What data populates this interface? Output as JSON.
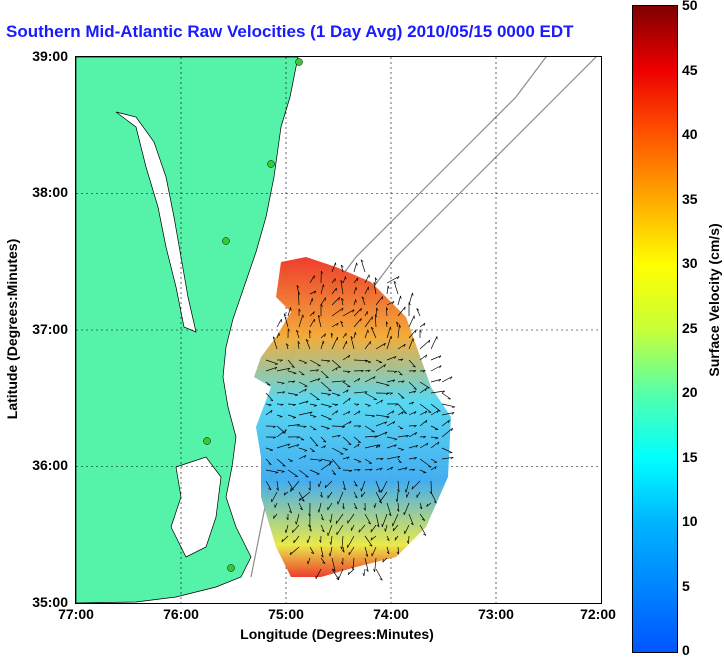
{
  "title": "Southern Mid-Atlantic Raw Velocities (1 Day Avg) 2010/05/15 0000 EDT",
  "axes": {
    "x_title": "Longitude (Degrees:Minutes)",
    "y_title": "Latitude (Degrees:Minutes)",
    "x_ticks": [
      "77:00",
      "76:00",
      "75:00",
      "74:00",
      "73:00",
      "72:00"
    ],
    "y_ticks": [
      "39:00",
      "38:00",
      "37:00",
      "36:00",
      "35:00"
    ]
  },
  "colorbar": {
    "title": "Surface Velocity (cm/s)",
    "ticks": [
      "50",
      "45",
      "40",
      "35",
      "30",
      "25",
      "20",
      "15",
      "10",
      "5",
      "0"
    ]
  },
  "colors": {
    "land": "#55f2aa",
    "title": "#1a1aff",
    "arrows": "#000000",
    "bathymetry": "#8c8c8c",
    "station": "#33cc33"
  }
}
